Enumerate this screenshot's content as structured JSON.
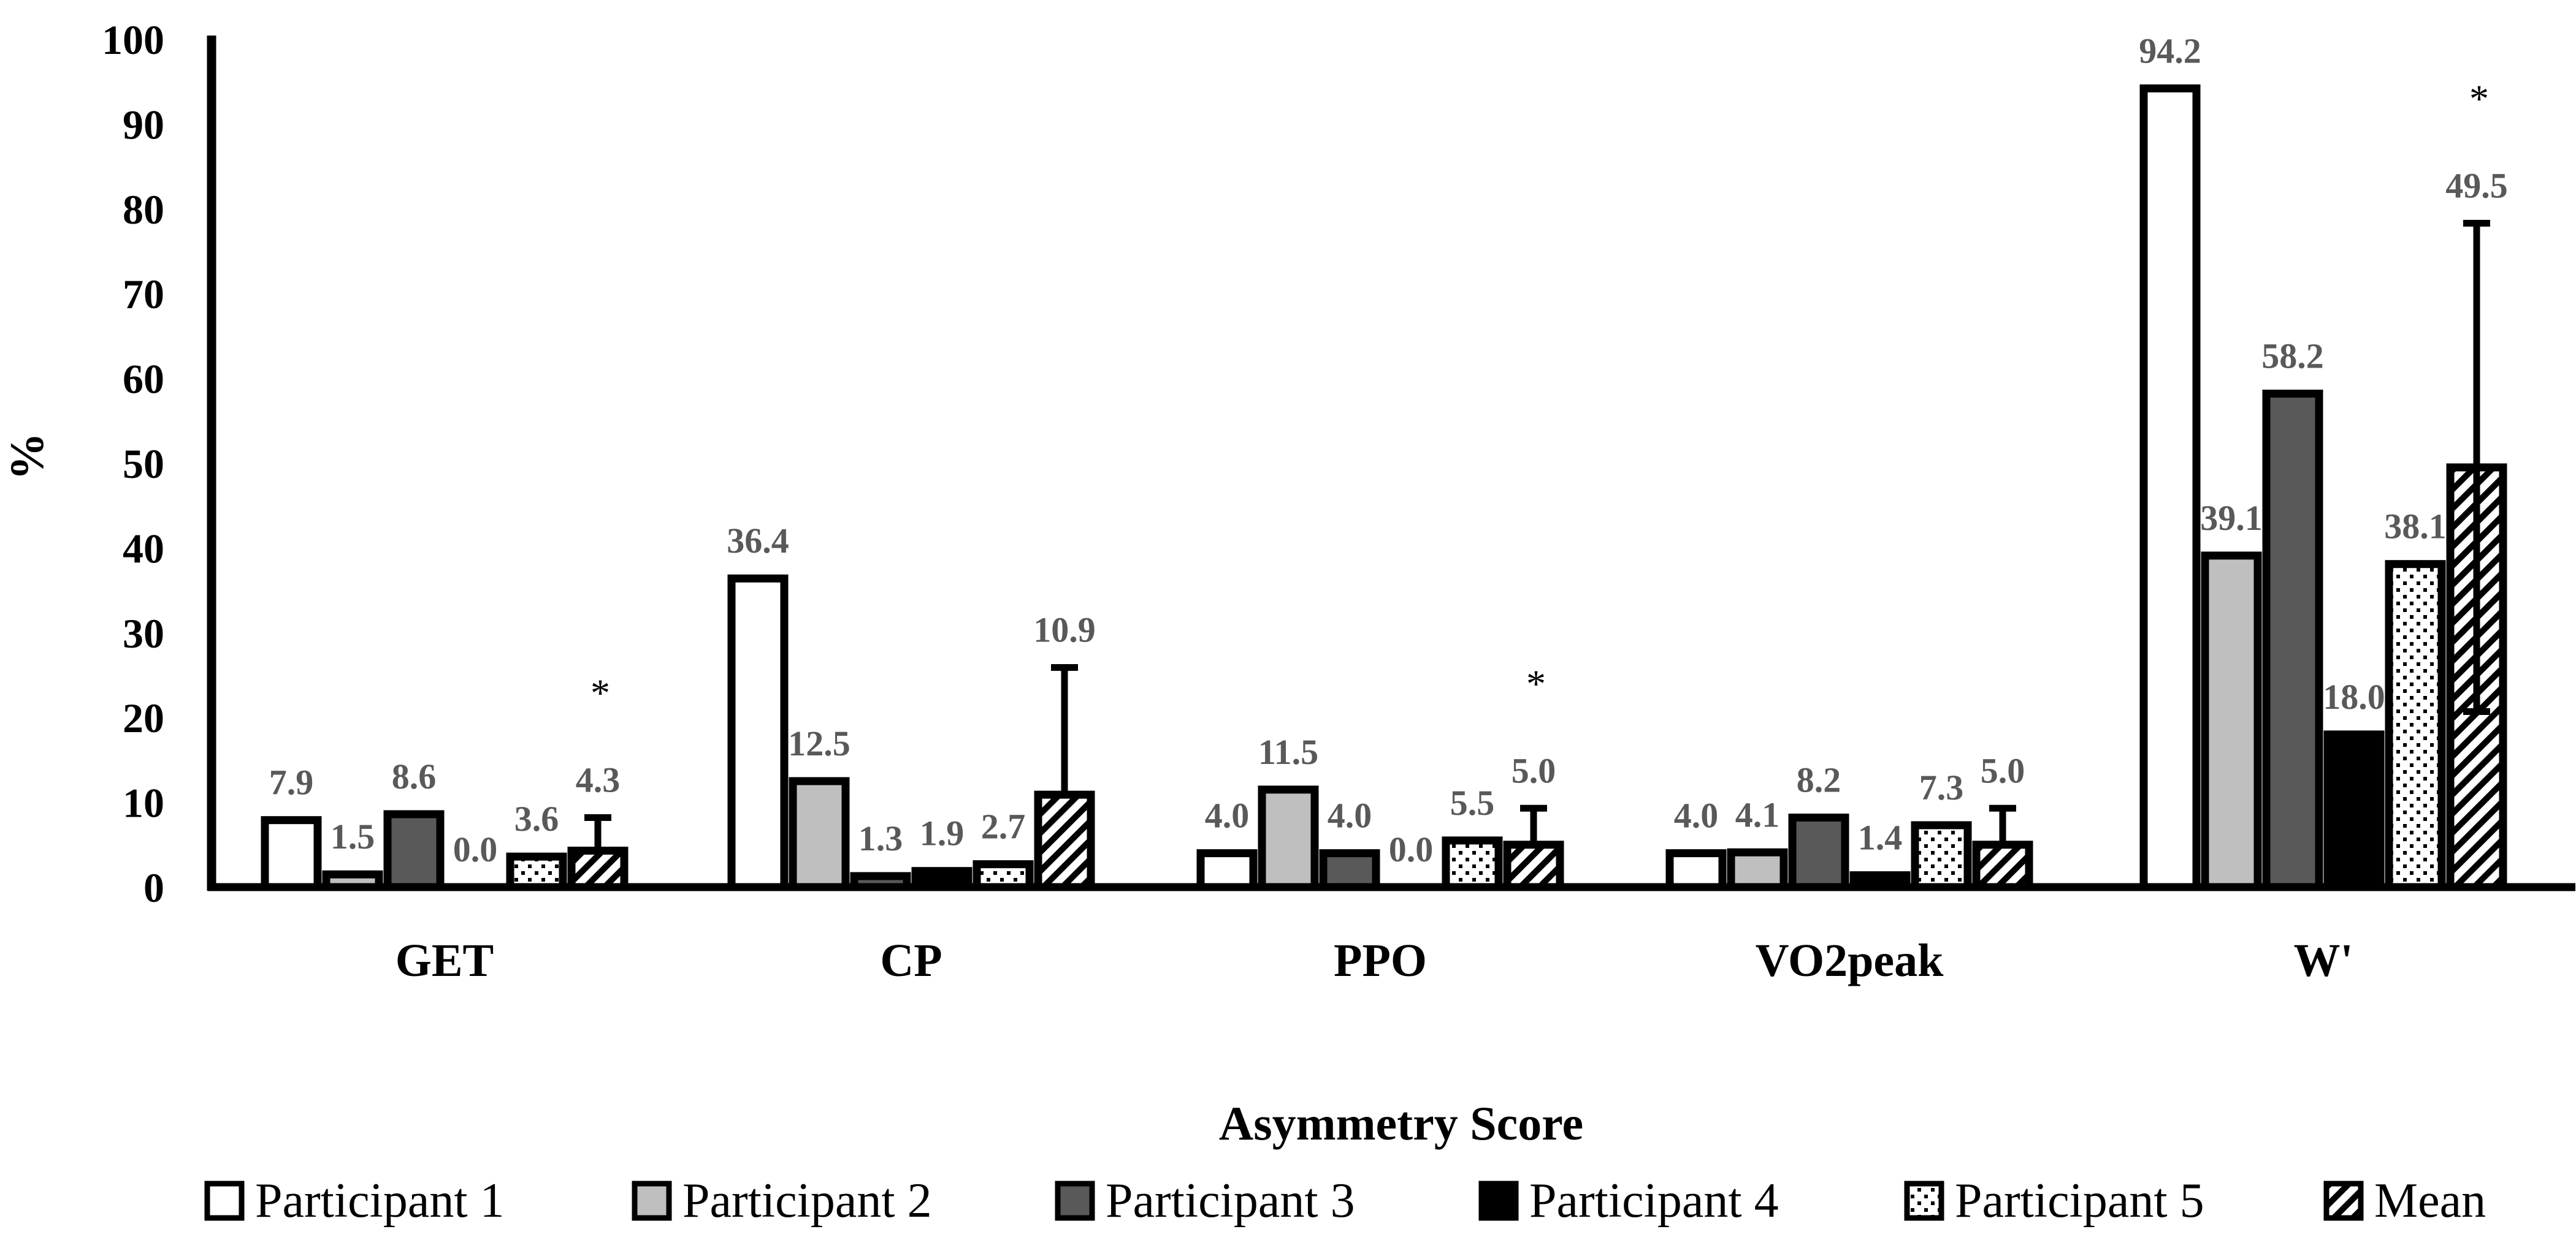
{
  "chart_data": {
    "type": "bar",
    "title": "",
    "xlabel": "Asymmetry Score",
    "ylabel": "%",
    "ylim": [
      0,
      100
    ],
    "yticks": [
      0,
      10,
      20,
      30,
      40,
      50,
      60,
      70,
      80,
      90,
      100
    ],
    "grid": false,
    "legend_position": "bottom",
    "categories": [
      "GET",
      "CP",
      "PPO",
      "VO2peak",
      "W'"
    ],
    "series": [
      {
        "name": "Participant 1",
        "pattern": "white",
        "values": [
          7.9,
          36.4,
          4.0,
          4.0,
          94.2
        ],
        "labels": [
          "7.9",
          "36.4",
          "4.0",
          "4.0",
          "94.2"
        ]
      },
      {
        "name": "Participant 2",
        "pattern": "lightgray",
        "values": [
          1.5,
          12.5,
          11.5,
          4.1,
          39.1
        ],
        "labels": [
          "1.5",
          "12.5",
          "11.5",
          "4.1",
          "39.1"
        ]
      },
      {
        "name": "Participant 3",
        "pattern": "darkgray",
        "values": [
          8.6,
          1.3,
          4.0,
          8.2,
          58.2
        ],
        "labels": [
          "8.6",
          "1.3",
          "4.0",
          "8.2",
          "58.2"
        ]
      },
      {
        "name": "Participant 4",
        "pattern": "black",
        "values": [
          0.0,
          1.9,
          0.0,
          1.4,
          18.0
        ],
        "labels": [
          "0.0",
          "1.9",
          "0.0",
          "1.4",
          "18.0"
        ]
      },
      {
        "name": "Participant 5",
        "pattern": "dots",
        "values": [
          3.6,
          2.7,
          5.5,
          7.3,
          38.1
        ],
        "labels": [
          "3.6",
          "2.7",
          "5.5",
          "7.3",
          "38.1"
        ]
      },
      {
        "name": "Mean",
        "pattern": "hatch",
        "values": [
          4.3,
          10.9,
          5.0,
          5.0,
          49.5
        ],
        "labels": [
          "4.3",
          "10.9",
          "5.0",
          "5.0",
          "49.5"
        ],
        "error_upper": [
          3.9,
          15.0,
          4.3,
          4.3,
          28.8
        ],
        "error_lower": [
          0,
          0,
          0,
          0,
          28.8
        ]
      }
    ],
    "significance": [
      "*",
      "",
      "*",
      "",
      "*"
    ],
    "colors": {
      "axis": "#000000",
      "lightgray": "#bfbfbf",
      "darkgray": "#595959",
      "label": "#595959"
    }
  }
}
